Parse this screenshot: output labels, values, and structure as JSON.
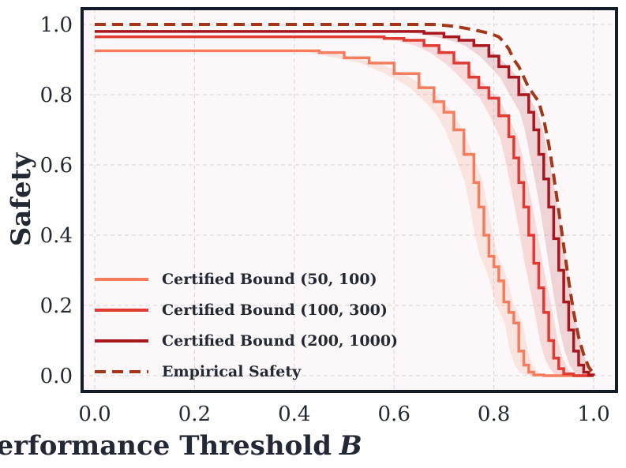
{
  "chart_data": {
    "type": "line",
    "xlabel": "Performance Threshold",
    "xlabel_var": "B",
    "ylabel": "Safety",
    "xlim": [
      0.0,
      1.0
    ],
    "ylim": [
      0.0,
      1.0
    ],
    "xticks": [
      "0.0",
      "0.2",
      "0.4",
      "0.6",
      "0.8",
      "1.0"
    ],
    "yticks": [
      "0.0",
      "0.2",
      "0.4",
      "0.6",
      "0.8",
      "1.0"
    ],
    "grid": true,
    "legend_position": "lower-left",
    "background": "#fcf8f9",
    "frame_color": "#141c2c",
    "series": [
      {
        "name": "Certified Bound (50, 100)",
        "color": "#f47d5e",
        "style": "solid",
        "band": true,
        "points": [
          [
            0.0,
            0.925
          ],
          [
            0.4,
            0.925
          ],
          [
            0.45,
            0.92
          ],
          [
            0.5,
            0.905
          ],
          [
            0.55,
            0.89
          ],
          [
            0.6,
            0.86
          ],
          [
            0.65,
            0.82
          ],
          [
            0.68,
            0.78
          ],
          [
            0.7,
            0.75
          ],
          [
            0.72,
            0.7
          ],
          [
            0.74,
            0.63
          ],
          [
            0.76,
            0.55
          ],
          [
            0.77,
            0.48
          ],
          [
            0.78,
            0.4
          ],
          [
            0.79,
            0.34
          ],
          [
            0.8,
            0.31
          ],
          [
            0.81,
            0.27
          ],
          [
            0.82,
            0.21
          ],
          [
            0.83,
            0.18
          ],
          [
            0.84,
            0.15
          ],
          [
            0.85,
            0.07
          ],
          [
            0.86,
            0.03
          ],
          [
            0.87,
            0.01
          ],
          [
            0.88,
            0.002
          ],
          [
            0.9,
            0.0
          ],
          [
            1.0,
            0.0
          ]
        ]
      },
      {
        "name": "Certified Bound (100, 300)",
        "color": "#e03a33",
        "style": "solid",
        "band": true,
        "points": [
          [
            0.0,
            0.965
          ],
          [
            0.52,
            0.965
          ],
          [
            0.58,
            0.96
          ],
          [
            0.62,
            0.955
          ],
          [
            0.66,
            0.94
          ],
          [
            0.69,
            0.92
          ],
          [
            0.72,
            0.89
          ],
          [
            0.75,
            0.85
          ],
          [
            0.77,
            0.82
          ],
          [
            0.79,
            0.79
          ],
          [
            0.81,
            0.74
          ],
          [
            0.83,
            0.68
          ],
          [
            0.84,
            0.62
          ],
          [
            0.85,
            0.55
          ],
          [
            0.86,
            0.48
          ],
          [
            0.87,
            0.4
          ],
          [
            0.88,
            0.32
          ],
          [
            0.89,
            0.25
          ],
          [
            0.9,
            0.18
          ],
          [
            0.91,
            0.1
          ],
          [
            0.92,
            0.05
          ],
          [
            0.93,
            0.02
          ],
          [
            0.94,
            0.005
          ],
          [
            0.96,
            0.0
          ],
          [
            1.0,
            0.0
          ]
        ]
      },
      {
        "name": "Certified Bound (200, 1000)",
        "color": "#a8161e",
        "style": "solid",
        "band": true,
        "points": [
          [
            0.0,
            0.98
          ],
          [
            0.62,
            0.98
          ],
          [
            0.66,
            0.975
          ],
          [
            0.7,
            0.965
          ],
          [
            0.73,
            0.955
          ],
          [
            0.76,
            0.94
          ],
          [
            0.79,
            0.91
          ],
          [
            0.81,
            0.88
          ],
          [
            0.83,
            0.85
          ],
          [
            0.85,
            0.8
          ],
          [
            0.87,
            0.75
          ],
          [
            0.88,
            0.7
          ],
          [
            0.89,
            0.63
          ],
          [
            0.9,
            0.56
          ],
          [
            0.91,
            0.48
          ],
          [
            0.92,
            0.39
          ],
          [
            0.93,
            0.3
          ],
          [
            0.94,
            0.21
          ],
          [
            0.95,
            0.13
          ],
          [
            0.96,
            0.07
          ],
          [
            0.97,
            0.03
          ],
          [
            0.98,
            0.01
          ],
          [
            0.99,
            0.002
          ],
          [
            1.0,
            0.0
          ]
        ]
      },
      {
        "name": "Empirical Safety",
        "color": "#a43718",
        "style": "dashed",
        "band": false,
        "points": [
          [
            0.0,
            1.0
          ],
          [
            0.68,
            1.0
          ],
          [
            0.72,
            0.995
          ],
          [
            0.76,
            0.985
          ],
          [
            0.79,
            0.975
          ],
          [
            0.81,
            0.965
          ],
          [
            0.82,
            0.95
          ],
          [
            0.83,
            0.93
          ],
          [
            0.84,
            0.9
          ],
          [
            0.85,
            0.88
          ],
          [
            0.86,
            0.85
          ],
          [
            0.87,
            0.82
          ],
          [
            0.88,
            0.8
          ],
          [
            0.89,
            0.78
          ],
          [
            0.9,
            0.73
          ],
          [
            0.91,
            0.66
          ],
          [
            0.92,
            0.57
          ],
          [
            0.93,
            0.47
          ],
          [
            0.94,
            0.37
          ],
          [
            0.95,
            0.27
          ],
          [
            0.96,
            0.18
          ],
          [
            0.97,
            0.11
          ],
          [
            0.98,
            0.06
          ],
          [
            0.99,
            0.025
          ],
          [
            1.0,
            0.005
          ]
        ]
      }
    ]
  }
}
